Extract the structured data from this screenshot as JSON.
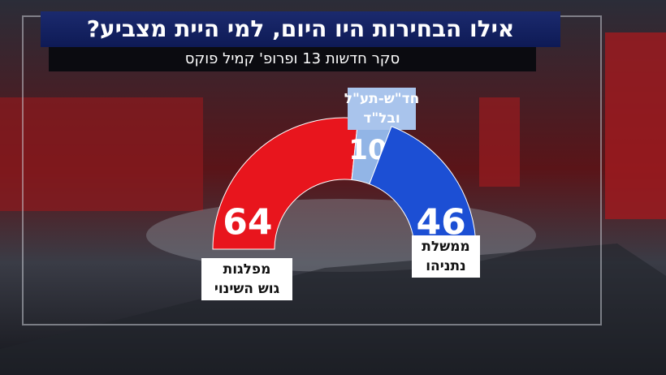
{
  "chart_data": {
    "type": "half-donut",
    "title": "אילו הבחירות היו היום, למי היית מצביע?",
    "subtitle": "סקר חדשות 13 ופרופ' קמיל פוקס",
    "categories": [
      [
        "מפלגות",
        "גוש השינוי"
      ],
      [
        "חד\"ש-תע\"ל",
        "ובל\"ד"
      ],
      [
        "ממשלת",
        "נתניהו"
      ]
    ],
    "values": [
      64,
      10,
      46
    ],
    "colors": [
      "#e8151d",
      "#92b5e6",
      "#1c4fd4"
    ]
  }
}
